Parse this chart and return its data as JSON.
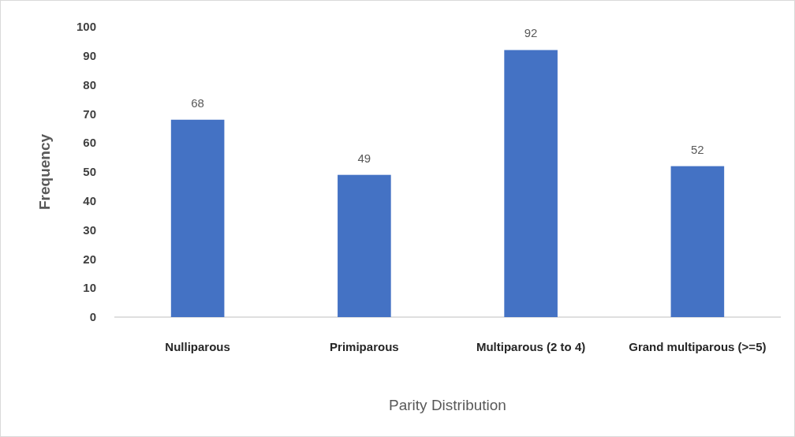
{
  "chart_data": {
    "type": "bar",
    "xlabel": "Parity Distribution",
    "ylabel": "Frequency",
    "categories": [
      "Nulliparous",
      "Primiparous",
      "Multiparous (2 to 4)",
      "Grand multiparous (>=5)"
    ],
    "values": [
      68,
      49,
      92,
      52
    ],
    "color": "#4472c4",
    "ylim": [
      0,
      100
    ],
    "yticks": [
      0,
      10,
      20,
      30,
      40,
      50,
      60,
      70,
      80,
      90,
      100
    ],
    "grid": false,
    "data_labels": true
  }
}
